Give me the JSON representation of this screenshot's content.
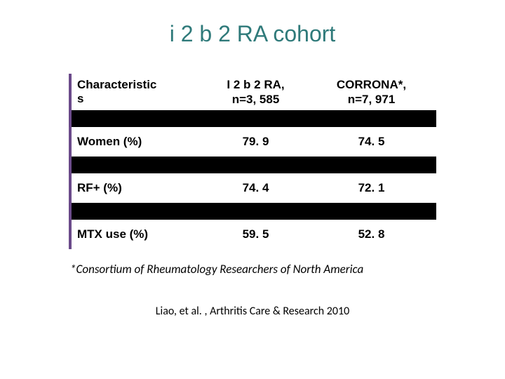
{
  "title": {
    "text": "i 2 b 2 RA cohort",
    "color": "#2f7a7a",
    "fontsize": 32
  },
  "table": {
    "accent_border_color": "#6b4a8a",
    "separator_color": "#000000",
    "columns": [
      {
        "header_line1": "Characteristic",
        "header_line2": "s",
        "align": "left"
      },
      {
        "header_line1": "I 2 b 2 RA,",
        "header_line2": "n=3, 585",
        "align": "center"
      },
      {
        "header_line1": "CORRONA*,",
        "header_line2": "n=7, 971",
        "align": "center"
      }
    ],
    "rows": [
      {
        "label": "Women (%)",
        "v1": "79. 9",
        "v2": "74. 5"
      },
      {
        "label": "RF+ (%)",
        "v1": "74. 4",
        "v2": "72. 1"
      },
      {
        "label": "MTX use (%)",
        "v1": "59. 5",
        "v2": "52. 8"
      }
    ]
  },
  "footnote": "*Consortium of Rheumatology Researchers of North America",
  "citation": "Liao, et al. , Arthritis Care & Research 2010"
}
